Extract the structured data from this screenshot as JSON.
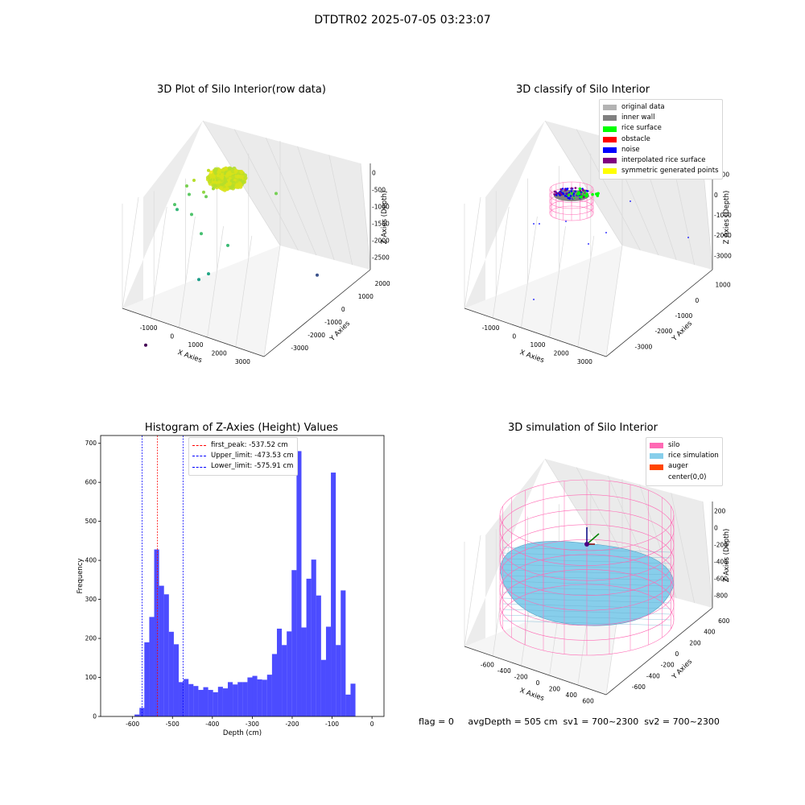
{
  "figure": {
    "suptitle": "DTDTR02 2025-07-05 03:23:07",
    "footer": "flag = 0     avgDepth = 505 cm  sv1 = 700~2300  sv2 = 700~2300"
  },
  "chart_data": [
    {
      "type": "scatter",
      "title": "3D Plot of Silo Interior(row data)",
      "xlabel": "X Axies",
      "ylabel": "Y Axies",
      "zlabel": "Z Axies (Depth)",
      "x_ticks": [
        "-1000",
        "0",
        "1000",
        "2000",
        "3000"
      ],
      "y_ticks": [
        "-3000",
        "-2000",
        "-1000",
        "0",
        "1000",
        "2000"
      ],
      "z_ticks": [
        "0",
        "-500",
        "-1000",
        "-1500",
        "-2000",
        "-2500"
      ],
      "colormap": [
        "#440154",
        "#3b528b",
        "#21908d",
        "#5dc963",
        "#fde725"
      ],
      "points": [
        {
          "x": 300,
          "y": 100,
          "z": -30,
          "c": "#fde725"
        },
        {
          "x": 500,
          "y": 200,
          "z": -100,
          "c": "#d8e219"
        },
        {
          "x": 0,
          "y": 300,
          "z": -150,
          "c": "#c2df23"
        },
        {
          "x": -100,
          "y": -200,
          "z": -200,
          "c": "#b5de2b"
        },
        {
          "x": 600,
          "y": -100,
          "z": -250,
          "c": "#a0da39"
        },
        {
          "x": 400,
          "y": -300,
          "z": -300,
          "c": "#8fd744"
        },
        {
          "x": -700,
          "y": 100,
          "z": -600,
          "c": "#7ad151"
        },
        {
          "x": -500,
          "y": 0,
          "z": -700,
          "c": "#5dc963"
        },
        {
          "x": -300,
          "y": 500,
          "z": -900,
          "c": "#6ccd5a"
        },
        {
          "x": 100,
          "y": -500,
          "z": -800,
          "c": "#4ec36b"
        },
        {
          "x": -900,
          "y": -200,
          "z": -950,
          "c": "#52c569"
        },
        {
          "x": 700,
          "y": -700,
          "z": -1000,
          "c": "#44bf70"
        },
        {
          "x": 1900,
          "y": 1200,
          "z": -550,
          "c": "#75d054"
        },
        {
          "x": 1400,
          "y": -300,
          "z": -1250,
          "c": "#3bbb75"
        },
        {
          "x": -1200,
          "y": 200,
          "z": -1300,
          "c": "#35b779"
        },
        {
          "x": 1200,
          "y": -900,
          "z": -1700,
          "c": "#21a685"
        },
        {
          "x": 1000,
          "y": -1100,
          "z": -1800,
          "c": "#1f9e89"
        },
        {
          "x": 3000,
          "y": 1800,
          "z": -2350,
          "c": "#3b528b"
        },
        {
          "x": 700,
          "y": -3000,
          "z": -2600,
          "c": "#440154"
        }
      ]
    },
    {
      "type": "scatter",
      "title": "3D classify of Silo Interior",
      "xlabel": "X Axies",
      "ylabel": "Y Axies",
      "zlabel": "Z Axies (Depth)",
      "x_ticks": [
        "-1000",
        "0",
        "1000",
        "2000",
        "3000"
      ],
      "y_ticks": [
        "-3000",
        "-2000",
        "-1000",
        "0",
        "1000"
      ],
      "z_ticks": [
        "1000",
        "0",
        "-1000",
        "-2000",
        "-3000"
      ],
      "legend": [
        {
          "label": "original data",
          "color": "#b3b3b3"
        },
        {
          "label": "inner wall",
          "color": "#808080"
        },
        {
          "label": "rice surface",
          "color": "#00ff00"
        },
        {
          "label": "obstacle",
          "color": "#ff0000"
        },
        {
          "label": "noise",
          "color": "#0000ff"
        },
        {
          "label": "interpolated rice surface",
          "color": "#800080"
        },
        {
          "label": "symmetric generated points",
          "color": "#ffff00"
        }
      ]
    },
    {
      "type": "bar",
      "title": "Histogram of Z-Axies (Height) Values",
      "xlabel": "Depth (cm)",
      "ylabel": "Frequency",
      "xlim": [
        -680,
        30
      ],
      "ylim": [
        0,
        720
      ],
      "x_ticks": [
        -600,
        -500,
        -400,
        -300,
        -200,
        -100,
        0
      ],
      "y_ticks": [
        0,
        100,
        200,
        300,
        400,
        500,
        600,
        700
      ],
      "bar_color": "#0000ff",
      "bins_start": -595,
      "bin_width": 12.3,
      "values": [
        5,
        22,
        190,
        255,
        428,
        335,
        313,
        217,
        185,
        88,
        96,
        83,
        78,
        68,
        75,
        68,
        62,
        76,
        72,
        88,
        82,
        88,
        88,
        100,
        104,
        95,
        94,
        107,
        160,
        225,
        183,
        218,
        375,
        680,
        228,
        353,
        402,
        310,
        145,
        230,
        625,
        183,
        323,
        56,
        84
      ],
      "vlines": [
        {
          "label": "first_peak: -537.52 cm",
          "x": -537.52,
          "color": "#ff0000"
        },
        {
          "label": "Upper_limit: -473.53 cm",
          "x": -473.53,
          "color": "#0000ff"
        },
        {
          "label": "Lower_limit: -575.91 cm",
          "x": -575.91,
          "color": "#0000ff"
        }
      ]
    },
    {
      "type": "scatter",
      "title": "3D simulation of Silo Interior",
      "xlabel": "X Axies",
      "ylabel": "Y Axies",
      "zlabel": "Z Axies (Depth)",
      "x_ticks": [
        "-600",
        "-400",
        "-200",
        "0",
        "200",
        "400",
        "600"
      ],
      "y_ticks": [
        "-600",
        "-400",
        "-200",
        "0",
        "200",
        "400",
        "600"
      ],
      "z_ticks": [
        "200",
        "0",
        "-200",
        "-400",
        "-600",
        "-800"
      ],
      "legend": [
        {
          "label": "silo",
          "color": "#ff69b4"
        },
        {
          "label": "rice simulation",
          "color": "#87ceeb"
        },
        {
          "label": "auger",
          "color": "#ff4500"
        },
        {
          "label": "center(0,0)",
          "color": ""
        }
      ]
    }
  ]
}
